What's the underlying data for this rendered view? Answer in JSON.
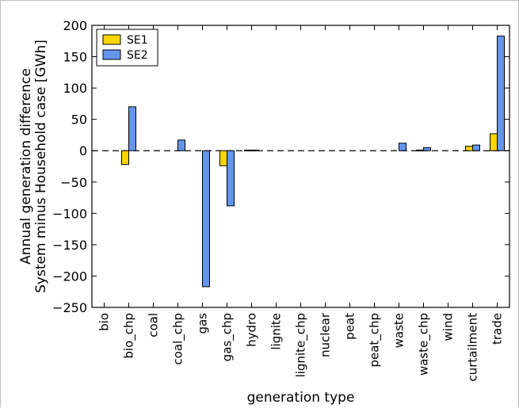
{
  "chart_data": {
    "type": "bar",
    "title": "",
    "xlabel": "generation type",
    "ylabel": [
      "Annual generation difference",
      "System minus Household case [GWh]"
    ],
    "ylim": [
      -250,
      200
    ],
    "yticks": [
      -250,
      -200,
      -150,
      -100,
      -50,
      0,
      50,
      100,
      150,
      200
    ],
    "categories": [
      "bio",
      "bio_chp",
      "coal",
      "coal_chp",
      "gas",
      "gas_chp",
      "hydro",
      "lignite",
      "lignite_chp",
      "nuclear",
      "peat",
      "peat_chp",
      "waste",
      "waste_chp",
      "wind",
      "curtailment",
      "trade"
    ],
    "series": [
      {
        "name": "SE1",
        "color": "#ffd500",
        "values": [
          0,
          -22,
          0,
          0,
          0,
          -24,
          1,
          0,
          0,
          0,
          0,
          0,
          0,
          1,
          0,
          7,
          27
        ]
      },
      {
        "name": "SE2",
        "color": "#6495ed",
        "values": [
          0,
          70,
          0,
          17,
          -217,
          -88,
          1,
          0,
          0,
          0,
          0,
          0,
          12,
          5,
          0,
          9,
          183
        ]
      }
    ],
    "zero_line_style": "dashed",
    "grid": false,
    "legend_position": "top-left"
  }
}
